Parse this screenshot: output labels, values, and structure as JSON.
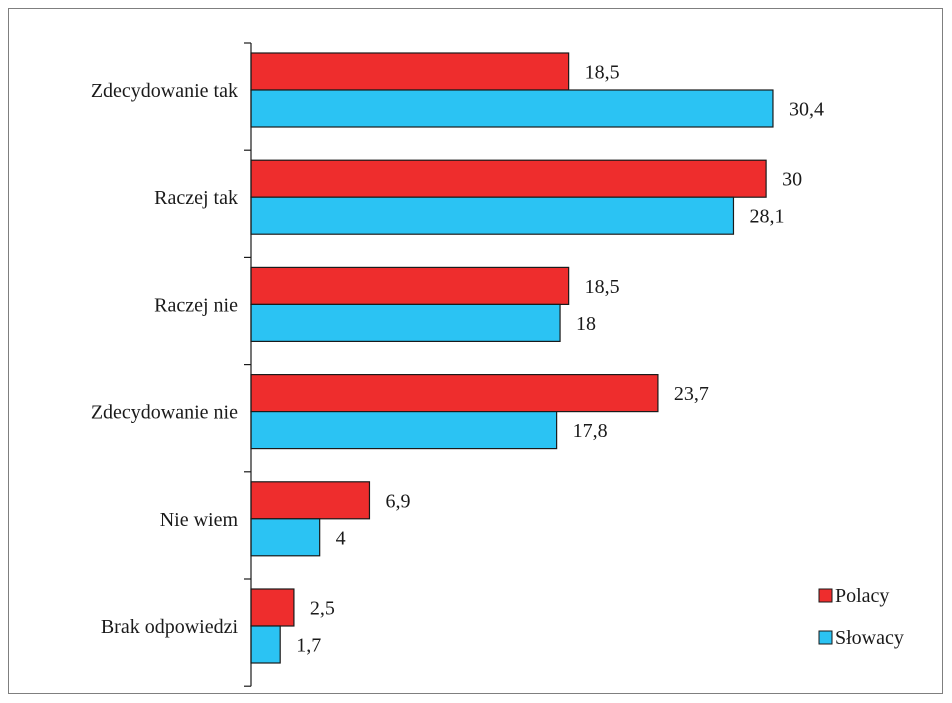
{
  "chart_data": {
    "type": "bar",
    "orientation": "horizontal",
    "categories": [
      "Zdecydowanie tak",
      "Raczej tak",
      "Raczej nie",
      "Zdecydowanie nie",
      "Nie wiem",
      "Brak odpowiedzi"
    ],
    "series": [
      {
        "name": "Polacy",
        "values": [
          18.5,
          30,
          18.5,
          23.7,
          6.9,
          2.5
        ],
        "labels": [
          "18,5",
          "30",
          "18,5",
          "23,7",
          "6,9",
          "2,5"
        ],
        "color": "#ee2d2d"
      },
      {
        "name": "Słowacy",
        "values": [
          30.4,
          28.1,
          18,
          17.8,
          4,
          1.7
        ],
        "labels": [
          "30,4",
          "28,1",
          "18",
          "17,8",
          "4",
          "1,7"
        ],
        "color": "#2bc3f3"
      }
    ],
    "xlim": [
      0,
      30.4
    ],
    "grid": false,
    "legend_position": "bottom-right"
  }
}
